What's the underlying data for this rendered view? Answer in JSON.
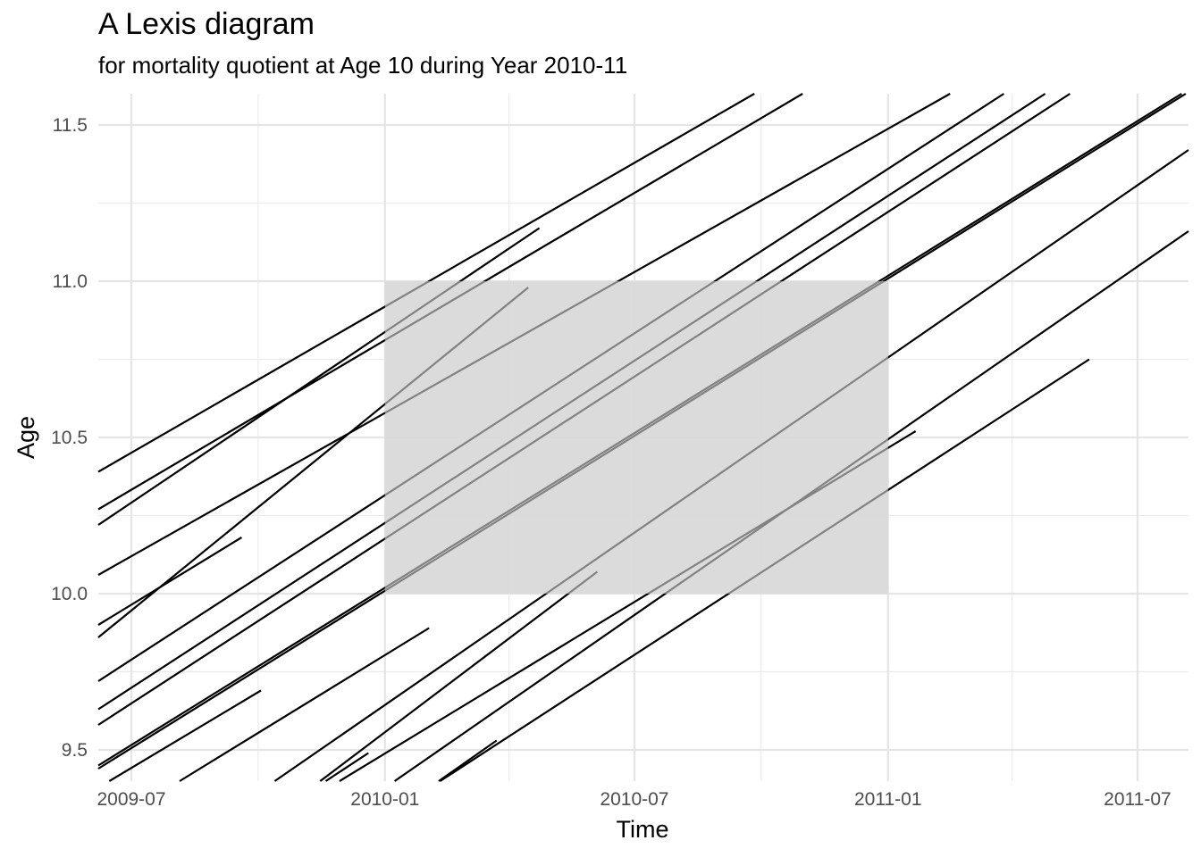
{
  "chart_data": {
    "type": "line",
    "title": "A Lexis diagram",
    "subtitle": "for mortality quotient at Age 10 during Year 2010-11",
    "xlabel": "Time",
    "ylabel": "Age",
    "xlim": [
      "2009-06-07",
      "2011-08-07"
    ],
    "ylim": [
      9.4,
      11.6
    ],
    "x_ticks": [
      {
        "date": "2009-07-01",
        "label": "2009-07"
      },
      {
        "date": "2010-01-01",
        "label": "2010-01"
      },
      {
        "date": "2010-07-01",
        "label": "2010-07"
      },
      {
        "date": "2011-01-01",
        "label": "2011-01"
      },
      {
        "date": "2011-07-01",
        "label": "2011-07"
      }
    ],
    "x_minor_ticks": [
      "2009-10-01",
      "2010-04-01",
      "2010-10-01",
      "2011-04-01"
    ],
    "y_ticks": [
      9.5,
      10.0,
      10.5,
      11.0,
      11.5
    ],
    "y_minor_ticks": [
      9.75,
      10.25,
      10.75,
      11.25
    ],
    "grid": true,
    "highlight_region": {
      "x": [
        "2010-01-01",
        "2011-01-01"
      ],
      "y": [
        10.0,
        11.0
      ],
      "color": "#d9d9d9"
    },
    "line_color": "#000000",
    "lifelines": [
      {
        "x": [
          "2009-06-07",
          "2010-09-26"
        ],
        "y": [
          10.39,
          11.6
        ]
      },
      {
        "x": [
          "2009-06-07",
          "2010-10-31"
        ],
        "y": [
          10.27,
          11.6
        ]
      },
      {
        "x": [
          "2009-06-07",
          "2010-04-23"
        ],
        "y": [
          10.22,
          11.17
        ]
      },
      {
        "x": [
          "2009-06-07",
          "2011-02-15"
        ],
        "y": [
          10.06,
          11.6
        ]
      },
      {
        "x": [
          "2009-06-07",
          "2010-04-15"
        ],
        "y": [
          9.86,
          10.98
        ]
      },
      {
        "x": [
          "2009-06-07",
          "2009-09-19"
        ],
        "y": [
          9.9,
          10.18
        ]
      },
      {
        "x": [
          "2009-06-07",
          "2011-03-26"
        ],
        "y": [
          9.72,
          11.6
        ]
      },
      {
        "x": [
          "2009-06-07",
          "2011-04-25"
        ],
        "y": [
          9.63,
          11.6
        ]
      },
      {
        "x": [
          "2009-06-07",
          "2011-05-13"
        ],
        "y": [
          9.58,
          11.6
        ]
      },
      {
        "x": [
          "2009-06-07",
          "2011-08-02"
        ],
        "y": [
          9.45,
          11.6
        ]
      },
      {
        "x": [
          "2009-06-07",
          "2011-08-05"
        ],
        "y": [
          9.44,
          11.6
        ]
      },
      {
        "x": [
          "2009-06-15",
          "2009-10-03"
        ],
        "y": [
          9.4,
          9.69
        ]
      },
      {
        "x": [
          "2009-08-05",
          "2010-02-02"
        ],
        "y": [
          9.4,
          9.89
        ]
      },
      {
        "x": [
          "2009-10-13",
          "2011-08-07"
        ],
        "y": [
          9.4,
          11.42
        ]
      },
      {
        "x": [
          "2009-11-15",
          "2010-06-04"
        ],
        "y": [
          9.4,
          10.07
        ]
      },
      {
        "x": [
          "2009-11-19",
          "2009-12-20"
        ],
        "y": [
          9.4,
          9.49
        ]
      },
      {
        "x": [
          "2009-11-29",
          "2011-01-21"
        ],
        "y": [
          9.4,
          10.52
        ]
      },
      {
        "x": [
          "2010-01-08",
          "2011-08-07"
        ],
        "y": [
          9.4,
          11.16
        ]
      },
      {
        "x": [
          "2010-02-10",
          "2011-05-27"
        ],
        "y": [
          9.4,
          10.75
        ]
      },
      {
        "x": [
          "2010-02-09",
          "2010-03-23"
        ],
        "y": [
          9.4,
          9.53
        ]
      }
    ]
  }
}
